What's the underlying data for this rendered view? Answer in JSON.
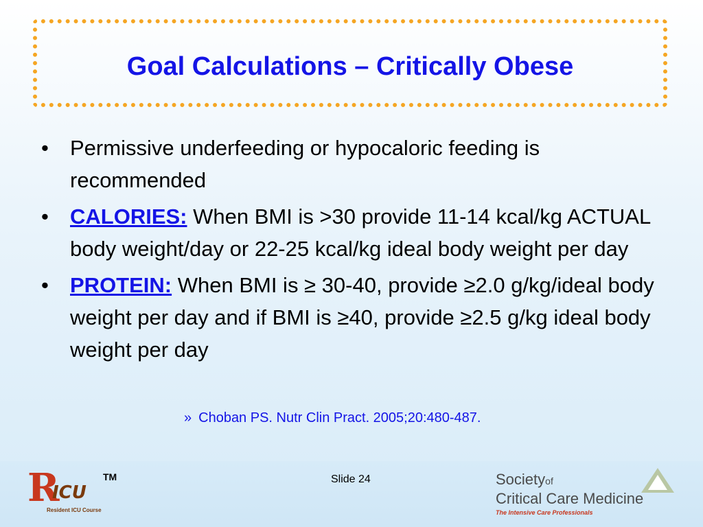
{
  "slide": {
    "title": "Goal Calculations – Critically Obese",
    "bullet_symbol": "•",
    "bullets": [
      {
        "lead": "",
        "text": "Permissive underfeeding or hypocaloric feeding is recommended"
      },
      {
        "lead": "CALORIES:",
        "text": " When BMI is >30 provide 11-14 kcal/kg ACTUAL body weight/day or 22-25 kcal/kg ideal body weight per day"
      },
      {
        "lead": "PROTEIN:",
        "text": " When BMI is ≥ 30-40, provide ≥2.0 g/kg/ideal body weight per day and if BMI is ≥40, provide ≥2.5 g/kg ideal body weight per day"
      }
    ],
    "citation_mark": "»",
    "citation": "Choban PS. Nutr Clin Pract. 2005;20:480-487.",
    "slide_number": "Slide 24"
  },
  "logos": {
    "ricu": {
      "letter": "R",
      "icu": "ICU",
      "tm": "TM",
      "subtitle": "Resident ICU Course"
    },
    "sccm": {
      "line1": "Society",
      "of": "of",
      "line2": "Critical Care Medicine",
      "tagline": "The Intensive Care Professionals"
    }
  },
  "colors": {
    "title": "#1414e6",
    "border": "#f5a623",
    "accent_red": "#c8381e"
  }
}
